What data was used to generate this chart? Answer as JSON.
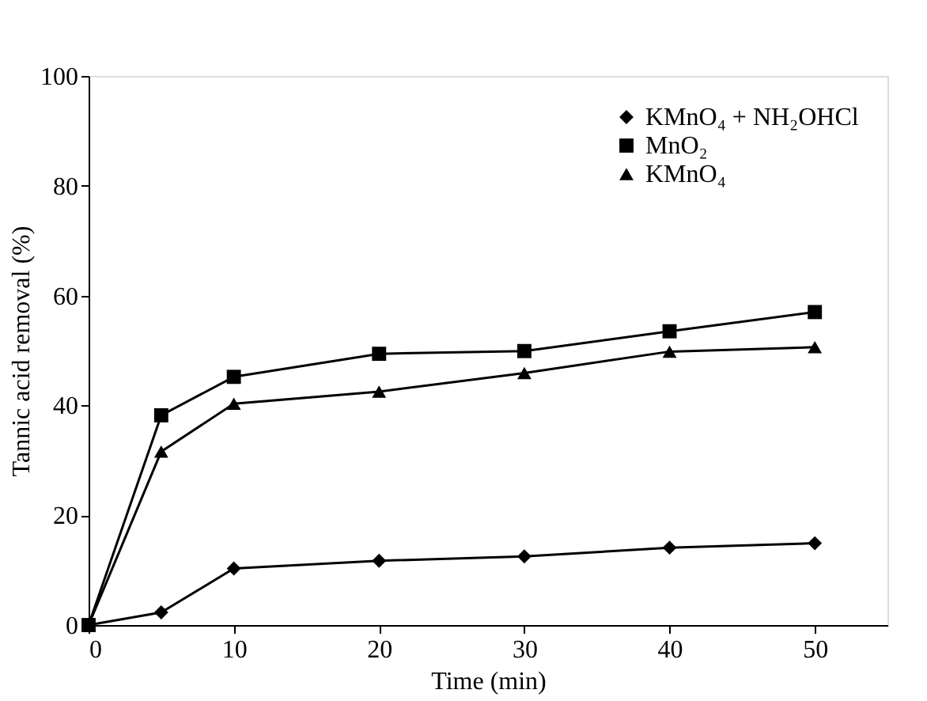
{
  "chart_data": {
    "type": "line",
    "xlabel": "Time (min)",
    "ylabel": "Tannic acid removal (%)",
    "x": [
      0,
      5,
      10,
      20,
      30,
      40,
      50
    ],
    "series": [
      {
        "name": "KMnO₄ + NH₂OHCl",
        "color": "#000000",
        "marker": "diamond",
        "values": [
          0,
          2.3,
          10.3,
          11.7,
          12.5,
          14.1,
          14.9
        ]
      },
      {
        "name": "MnO₂",
        "color": "#000000",
        "marker": "square",
        "values": [
          0,
          38.2,
          45.2,
          49.4,
          49.9,
          53.5,
          57.0
        ]
      },
      {
        "name": "KMnO₄",
        "color": "#000000",
        "marker": "triangle",
        "values": [
          0,
          31.6,
          40.3,
          42.5,
          45.9,
          49.8,
          50.6
        ]
      }
    ],
    "xlim": [
      0,
      55
    ],
    "xticks": [
      0,
      10,
      20,
      30,
      40,
      50
    ],
    "ylim": [
      0,
      100
    ],
    "yticks": [
      0,
      20,
      40,
      60,
      80,
      100
    ],
    "grid": false,
    "legend": "top right",
    "line_style": "solid"
  }
}
